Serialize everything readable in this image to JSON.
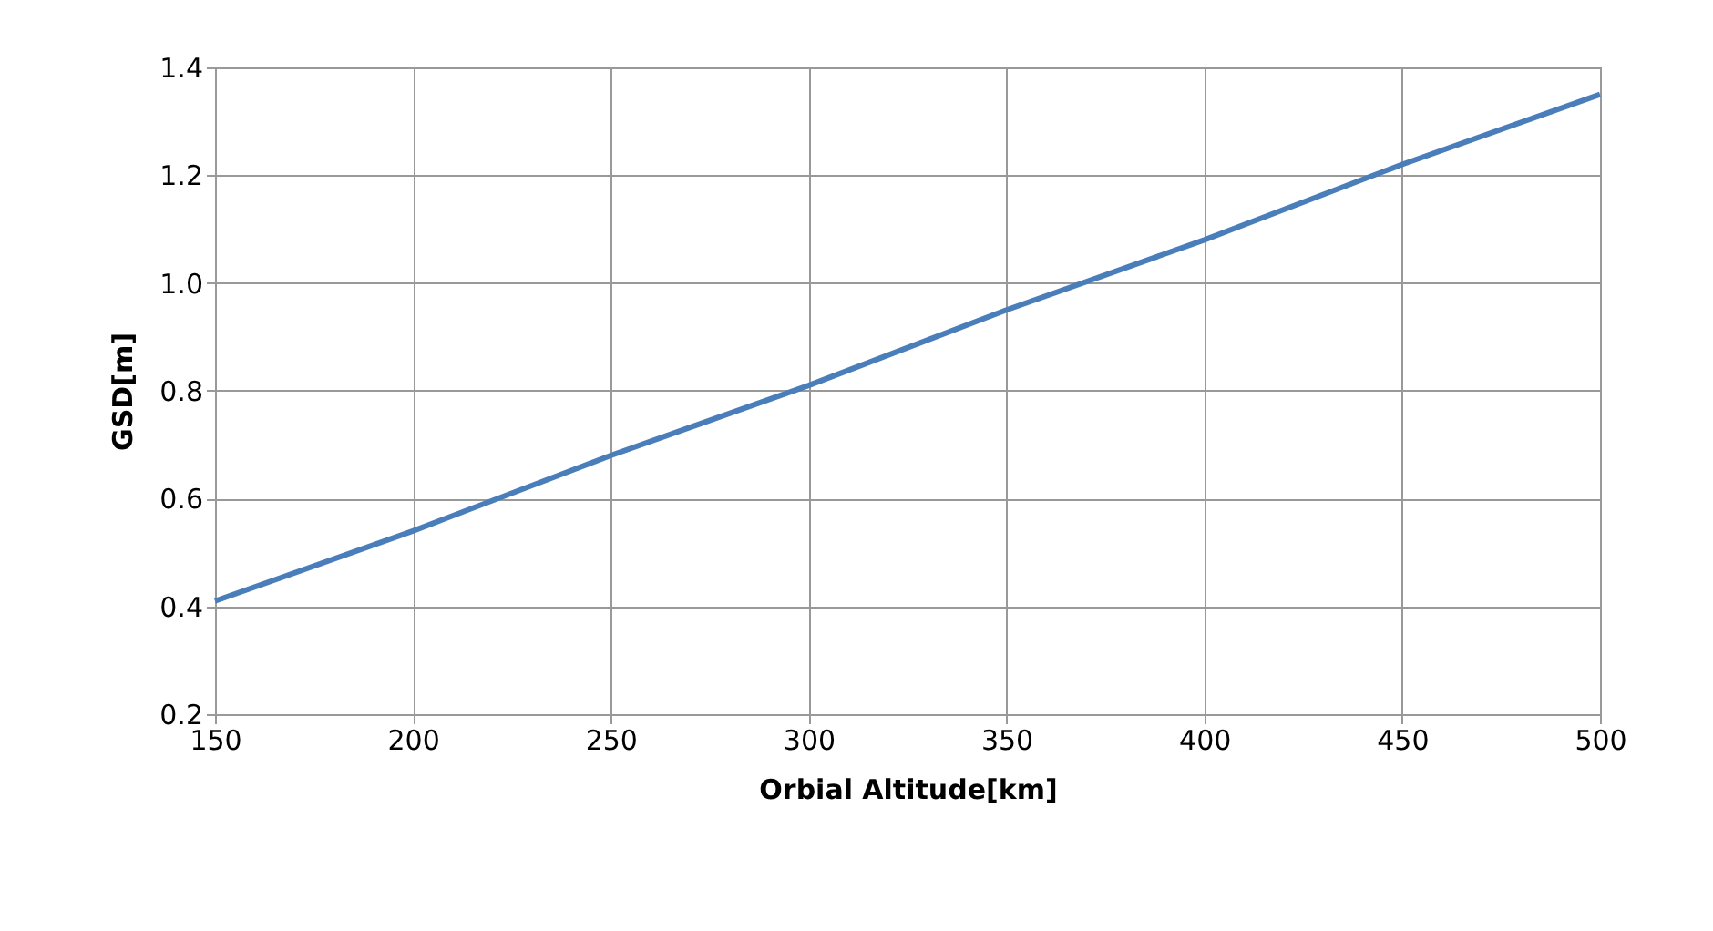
{
  "chart_data": {
    "type": "line",
    "xlabel": "Orbial Altitude[km]",
    "ylabel": "GSD[m]",
    "x": [
      150,
      200,
      250,
      300,
      350,
      400,
      450,
      500
    ],
    "series": [
      {
        "color": "#4a7ebb",
        "values": [
          0.41,
          0.54,
          0.68,
          0.81,
          0.95,
          1.08,
          1.22,
          1.35
        ]
      }
    ],
    "xlim": [
      150,
      500
    ],
    "xticks": [
      150,
      200,
      250,
      300,
      350,
      400,
      450,
      500
    ],
    "ylim": [
      0.2,
      1.4
    ],
    "yticks": [
      0.2,
      0.4,
      0.6,
      0.8,
      {
        "value": 1,
        "label": "1.0"
      },
      1.2,
      1.4
    ],
    "grid": true,
    "marker": "none",
    "line_style": "solid"
  }
}
